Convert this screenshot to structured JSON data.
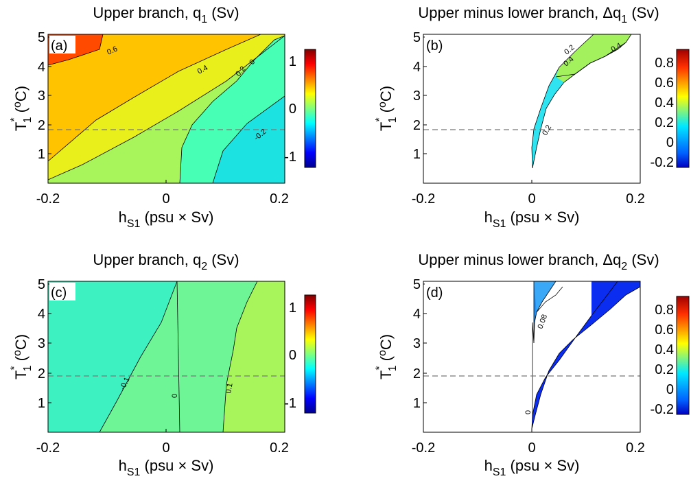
{
  "figure": {
    "panels": [
      {
        "id": "a",
        "title_text": "Upper branch, ",
        "title_var": "q",
        "title_sub": "1",
        "title_units": " (Sv)",
        "tag": "(a)",
        "xlabel_main": "h",
        "xlabel_sub": "S1",
        "xlabel_units": " (psu × Sv)",
        "ylabel_star": "*",
        "ylabel_main": "T",
        "ylabel_sub": "1",
        "ylabel_units_open": " (",
        "ylabel_units_sup": "o",
        "ylabel_units_close": "C)",
        "xticks": [
          "-0.2",
          "0",
          "0.2"
        ],
        "yticks": [
          "1",
          "2",
          "3",
          "4",
          "5"
        ],
        "colorbar_ticks": [
          "1",
          "0",
          "-1"
        ],
        "contour_labels": [
          "0.6",
          "0.4",
          "0.2",
          "0",
          "-0.2"
        ]
      },
      {
        "id": "b",
        "title_text": "Upper minus lower branch, ",
        "title_var": "Δq",
        "title_sub": "1",
        "title_units": " (Sv)",
        "tag": "(b)",
        "xlabel_main": "h",
        "xlabel_sub": "S1",
        "xlabel_units": " (psu × Sv)",
        "ylabel_star": "*",
        "ylabel_main": "T",
        "ylabel_sub": "1",
        "ylabel_units_open": " (",
        "ylabel_units_sup": "o",
        "ylabel_units_close": "C)",
        "xticks": [
          "-0.2",
          "0",
          "0.2"
        ],
        "yticks": [
          "1",
          "2",
          "3",
          "4",
          "5"
        ],
        "colorbar_ticks": [
          "0.8",
          "0.6",
          "0.4",
          "0.2",
          "0",
          "-0.2"
        ],
        "contour_labels": [
          "0.2",
          "0.4",
          "0.4",
          "0.2"
        ]
      },
      {
        "id": "c",
        "title_text": "Upper branch, ",
        "title_var": "q",
        "title_sub": "2",
        "title_units": " (Sv)",
        "tag": "(c)",
        "xlabel_main": "h",
        "xlabel_sub": "S1",
        "xlabel_units": " (psu × Sv)",
        "ylabel_star": "*",
        "ylabel_main": "T",
        "ylabel_sub": "1",
        "ylabel_units_open": " (",
        "ylabel_units_sup": "o",
        "ylabel_units_close": "C)",
        "xticks": [
          "-0.2",
          "0",
          "0.2"
        ],
        "yticks": [
          "1",
          "2",
          "3",
          "4",
          "5"
        ],
        "colorbar_ticks": [
          "1",
          "0",
          "-1"
        ],
        "contour_labels": [
          "-0.1",
          "0",
          "0.1"
        ]
      },
      {
        "id": "d",
        "title_text": "Upper minus lower branch, ",
        "title_var": "Δq",
        "title_sub": "2",
        "title_units": " (Sv)",
        "tag": "(d)",
        "xlabel_main": "h",
        "xlabel_sub": "S1",
        "xlabel_units": " (psu × Sv)",
        "ylabel_star": "*",
        "ylabel_main": "T",
        "ylabel_sub": "1",
        "ylabel_units_open": " (",
        "ylabel_units_sup": "o",
        "ylabel_units_close": "C)",
        "xticks": [
          "-0.2",
          "0",
          "0.2"
        ],
        "yticks": [
          "1",
          "2",
          "3",
          "4",
          "5"
        ],
        "colorbar_ticks": [
          "0.8",
          "0.6",
          "0.4",
          "0.2",
          "0",
          "-0.2"
        ],
        "contour_labels": [
          "0.08",
          "0"
        ]
      }
    ]
  },
  "chart_data": [
    {
      "type": "heatmap",
      "panel": "a",
      "title": "Upper branch, q1 (Sv)",
      "xlabel": "hS1 (psu × Sv)",
      "ylabel": "T1* (oC)",
      "xlim": [
        -0.2,
        0.2
      ],
      "ylim": [
        0,
        5.1
      ],
      "colorbar_range": [
        -1.2,
        1.2
      ],
      "contour_levels": [
        0.6,
        0.4,
        0.2,
        0,
        -0.2
      ],
      "reference_line_y": 1.8,
      "colors": [
        "#ff4a00",
        "#ffc300",
        "#e9ef1b",
        "#a7f45b",
        "#48ffb6",
        "#1de2e2"
      ]
    },
    {
      "type": "heatmap",
      "panel": "b",
      "title": "Upper minus lower branch, Δq1 (Sv)",
      "xlabel": "hS1 (psu × Sv)",
      "ylabel": "T1* (oC)",
      "xlim": [
        -0.2,
        0.2
      ],
      "ylim": [
        0,
        5.1
      ],
      "colorbar_range": [
        -0.25,
        0.95
      ],
      "contour_levels": [
        0.4,
        0.2
      ],
      "reference_line_y": 1.8,
      "colors": [
        "#a3f25d",
        "#2fe4f0"
      ]
    },
    {
      "type": "heatmap",
      "panel": "c",
      "title": "Upper branch, q2 (Sv)",
      "xlabel": "hS1 (psu × Sv)",
      "ylabel": "T1* (oC)",
      "xlim": [
        -0.2,
        0.2
      ],
      "ylim": [
        0,
        5.1
      ],
      "colorbar_range": [
        -1.2,
        1.2
      ],
      "contour_levels": [
        -0.1,
        0,
        0.1
      ],
      "reference_line_y": 1.8,
      "colors": [
        "#3df2c0",
        "#6df596",
        "#a7f45b"
      ]
    },
    {
      "type": "heatmap",
      "panel": "d",
      "title": "Upper minus lower branch, Δq2 (Sv)",
      "xlabel": "hS1 (psu × Sv)",
      "ylabel": "T1* (oC)",
      "xlim": [
        -0.2,
        0.2
      ],
      "ylim": [
        0,
        5.1
      ],
      "colorbar_range": [
        -0.25,
        0.95
      ],
      "contour_levels": [
        0.08,
        0
      ],
      "reference_line_y": 1.8,
      "colors": [
        "#0b2df0",
        "#1f8ef5"
      ]
    }
  ]
}
